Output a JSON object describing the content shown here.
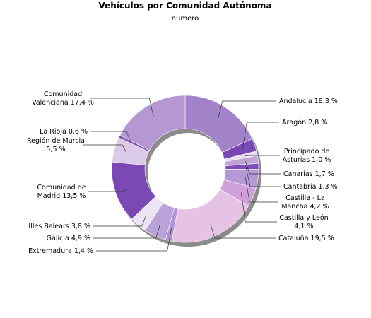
{
  "chart_data": {
    "type": "pie",
    "variant": "donut",
    "title": "Vehículos por Comunidad Autónoma",
    "subtitle": "numero",
    "unit": "%",
    "legend": "none (labels placed outside the ring)",
    "start_angle_deg": 0,
    "direction": "clockwise",
    "slices": [
      {
        "name": "Andalucía",
        "value": 18.3,
        "label": [
          "Andalucía 18,3 %"
        ],
        "color": "#a283c9"
      },
      {
        "name": "Aragón",
        "value": 2.8,
        "label": [
          "Aragón 2,8 %"
        ],
        "color": "#7a48b5"
      },
      {
        "name": "Principado de Asturias",
        "value": 1.0,
        "label": [
          "Principado de",
          "Asturias 1,0 %"
        ],
        "color": "#e9dcf0"
      },
      {
        "name": "Canarias",
        "value": 1.7,
        "label": [
          "Canarias 1,7 %"
        ],
        "color": "#c0a4d6"
      },
      {
        "name": "Cantabria",
        "value": 1.3,
        "label": [
          "Cantabria 1,3 %"
        ],
        "color": "#7e4cb8"
      },
      {
        "name": "Castilla - La Mancha",
        "value": 4.2,
        "label": [
          "Castilla - La",
          "Mancha 4,2 %"
        ],
        "color": "#b49ad5"
      },
      {
        "name": "Castilla y León",
        "value": 4.1,
        "label": [
          "Castilla y León",
          "4,1 %"
        ],
        "color": "#cfa0d9"
      },
      {
        "name": "Cataluña",
        "value": 19.5,
        "label": [
          "Cataluña 19,5 %"
        ],
        "color": "#e6c2e4"
      },
      {
        "name": "Extremadura",
        "value": 1.4,
        "label": [
          "Extremadura 1,4 %"
        ],
        "color": "#b294d2"
      },
      {
        "name": "Galicia",
        "value": 4.9,
        "label": [
          "Galicia 4,9 %"
        ],
        "color": "#b8a2d8"
      },
      {
        "name": "Illes Balears",
        "value": 3.8,
        "label": [
          "Illes Balears 3,8 %"
        ],
        "color": "#ece4f4"
      },
      {
        "name": "Comunidad de Madrid",
        "value": 13.5,
        "label": [
          "Comunidad de",
          "Madrid 13,5 %"
        ],
        "color": "#7b49b3"
      },
      {
        "name": "Región de Murcia",
        "value": 5.5,
        "label": [
          "Región de Murcia",
          "5,5 %"
        ],
        "color": "#dccbe8"
      },
      {
        "name": "La Rioja",
        "value": 0.6,
        "label": [
          "La Rioja 0,6 %"
        ],
        "color": "#7f55b8"
      },
      {
        "name": "Comunidad Valenciana",
        "value": 17.4,
        "label": [
          "Comunidad",
          "Valenciana 17,4 %"
        ],
        "color": "#b598d1"
      }
    ]
  }
}
